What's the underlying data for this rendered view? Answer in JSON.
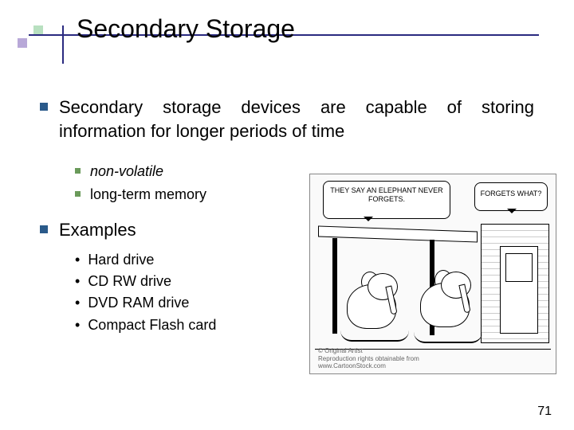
{
  "title": "Secondary Storage",
  "bullets": {
    "main1": "Secondary storage devices are capable of storing information for longer periods of time",
    "sub1": "non-volatile",
    "sub2": "long-term memory",
    "main2": "Examples",
    "ex1": "Hard drive",
    "ex2": "CD RW drive",
    "ex3": "DVD RAM drive",
    "ex4": "Compact Flash card"
  },
  "cartoon": {
    "speech1": "THEY SAY AN ELEPHANT NEVER FORGETS.",
    "speech2": "FORGETS WHAT?",
    "credit_line1": "© Original Artist",
    "credit_line2": "Reproduction rights obtainable from",
    "credit_line3": "www.CartoonStock.com"
  },
  "page_number": "71",
  "colors": {
    "title_line": "#2a2a80",
    "bullet_l1": "#2a5a8a",
    "bullet_l2": "#6a9a5a",
    "deco_purple": "#b8a8d8",
    "deco_green": "#b8e0c0"
  }
}
